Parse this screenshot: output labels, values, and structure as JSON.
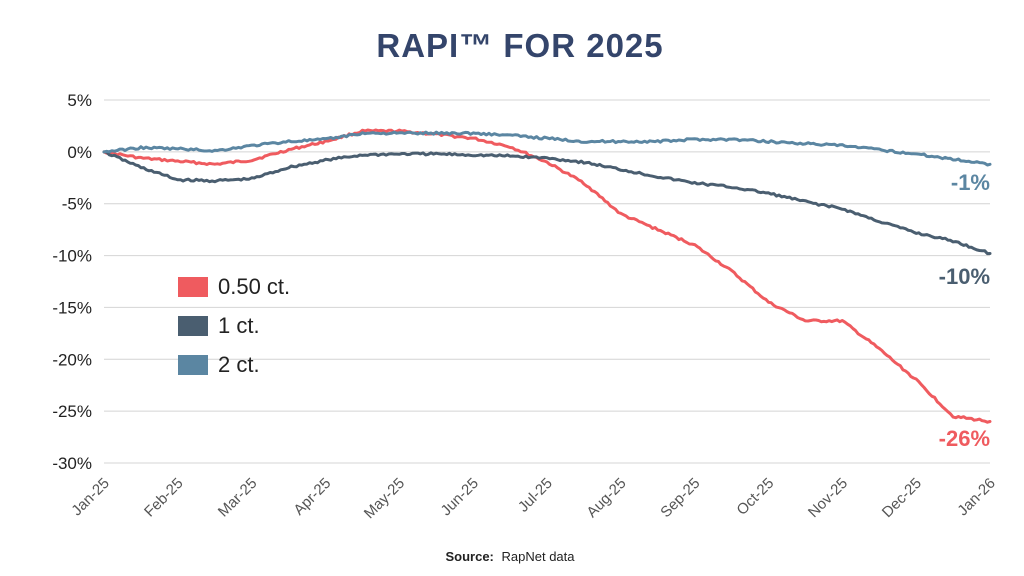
{
  "chart_data": {
    "type": "line",
    "title": "RAPI™ FOR 2025",
    "xlabel": "",
    "ylabel": "",
    "x_ticks": [
      "Jan-25",
      "Feb-25",
      "Mar-25",
      "Apr-25",
      "May-25",
      "Jun-25",
      "Jul-25",
      "Aug-25",
      "Sep-25",
      "Oct-25",
      "Nov-25",
      "Dec-25",
      "Jan-26"
    ],
    "y_ticks": [
      5,
      0,
      -5,
      -10,
      -15,
      -20,
      -25,
      -30
    ],
    "y_tick_labels": [
      "5%",
      "0%",
      "-5%",
      "-10%",
      "-15%",
      "-20%",
      "-25%",
      "-30%"
    ],
    "ylim": [
      -30,
      5
    ],
    "grid": true,
    "legend_position": "left",
    "series": [
      {
        "name": "0.50 ct.",
        "color": "#ef5b5f",
        "end_label": "-26%",
        "points": [
          [
            "Jan-25",
            0
          ],
          [
            "Jan-25 mid",
            -0.6
          ],
          [
            "Feb-25",
            -0.9
          ],
          [
            "Feb-25 mid",
            -1.2
          ],
          [
            "Mar-25",
            -0.8
          ],
          [
            "Mar-25 mid",
            0.2
          ],
          [
            "Apr-25",
            1.0
          ],
          [
            "Apr-25 mid",
            2.0
          ],
          [
            "May-25",
            2.0
          ],
          [
            "May-25 mid",
            1.7
          ],
          [
            "Jun-25",
            1.3
          ],
          [
            "Jun-25 mid",
            0.5
          ],
          [
            "Jul-25",
            -1.0
          ],
          [
            "Jul-25 mid",
            -3.0
          ],
          [
            "Aug-25",
            -6.0
          ],
          [
            "Aug-25 mid",
            -7.5
          ],
          [
            "Sep-25",
            -9.0
          ],
          [
            "Sep-25 mid",
            -11.5
          ],
          [
            "Oct-25",
            -14.5
          ],
          [
            "Oct-25 mid",
            -16.3
          ],
          [
            "Nov-25",
            -16.3
          ],
          [
            "Nov-25 mid",
            -19.0
          ],
          [
            "Dec-25",
            -22.0
          ],
          [
            "Dec-25 mid",
            -25.5
          ],
          [
            "Jan-26",
            -26
          ]
        ]
      },
      {
        "name": "1 ct.",
        "color": "#4a5e70",
        "end_label": "-10%",
        "points": [
          [
            "Jan-25",
            0
          ],
          [
            "Jan-25 mid",
            -1.5
          ],
          [
            "Feb-25",
            -2.7
          ],
          [
            "Feb-25 mid",
            -2.8
          ],
          [
            "Mar-25",
            -2.6
          ],
          [
            "Mar-25 mid",
            -1.5
          ],
          [
            "Apr-25",
            -0.8
          ],
          [
            "Apr-25 mid",
            -0.3
          ],
          [
            "May-25",
            -0.2
          ],
          [
            "May-25 mid",
            -0.2
          ],
          [
            "Jun-25",
            -0.3
          ],
          [
            "Jun-25 mid",
            -0.4
          ],
          [
            "Jul-25",
            -0.6
          ],
          [
            "Jul-25 mid",
            -1.0
          ],
          [
            "Aug-25",
            -1.7
          ],
          [
            "Aug-25 mid",
            -2.4
          ],
          [
            "Sep-25",
            -3.0
          ],
          [
            "Sep-25 mid",
            -3.4
          ],
          [
            "Oct-25",
            -4.0
          ],
          [
            "Oct-25 mid",
            -4.8
          ],
          [
            "Nov-25",
            -5.5
          ],
          [
            "Nov-25 mid",
            -6.7
          ],
          [
            "Dec-25",
            -7.8
          ],
          [
            "Dec-25 mid",
            -8.6
          ],
          [
            "Jan-26",
            -9.8
          ]
        ]
      },
      {
        "name": "2 ct.",
        "color": "#5b86a2",
        "end_label": "-1%",
        "points": [
          [
            "Jan-25",
            0
          ],
          [
            "Jan-25 mid",
            0.4
          ],
          [
            "Feb-25",
            0.3
          ],
          [
            "Feb-25 mid",
            0.1
          ],
          [
            "Mar-25",
            0.6
          ],
          [
            "Mar-25 mid",
            1.0
          ],
          [
            "Apr-25",
            1.2
          ],
          [
            "Apr-25 mid",
            1.8
          ],
          [
            "May-25",
            1.8
          ],
          [
            "May-25 mid",
            1.8
          ],
          [
            "Jun-25",
            1.8
          ],
          [
            "Jun-25 mid",
            1.6
          ],
          [
            "Jul-25",
            1.3
          ],
          [
            "Jul-25 mid",
            1.0
          ],
          [
            "Aug-25",
            1.0
          ],
          [
            "Aug-25 mid",
            1.0
          ],
          [
            "Sep-25",
            1.2
          ],
          [
            "Sep-25 mid",
            1.2
          ],
          [
            "Oct-25",
            1.0
          ],
          [
            "Oct-25 mid",
            0.8
          ],
          [
            "Nov-25",
            0.6
          ],
          [
            "Nov-25 mid",
            0.2
          ],
          [
            "Dec-25",
            -0.2
          ],
          [
            "Dec-25 mid",
            -0.7
          ],
          [
            "Jan-26",
            -1.2
          ]
        ]
      }
    ]
  },
  "source": {
    "label": "Source:",
    "text": "RapNet data"
  }
}
